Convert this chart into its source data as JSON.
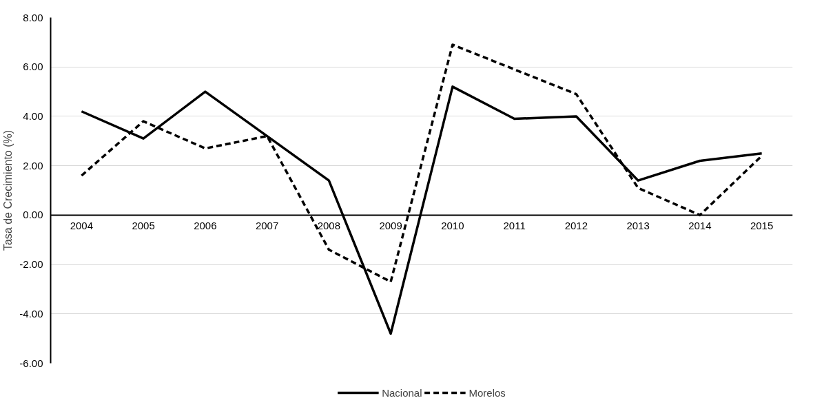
{
  "chart_data": {
    "type": "line",
    "ylabel": "Tasa de Crecimiento (%)",
    "categories": [
      "2004",
      "2005",
      "2006",
      "2007",
      "2008",
      "2009",
      "2010",
      "2011",
      "2012",
      "2013",
      "2014",
      "2015"
    ],
    "series": [
      {
        "name": "Nacional",
        "color": "#000000",
        "line_style": "solid",
        "values": [
          4.2,
          3.1,
          5.0,
          3.2,
          1.4,
          -4.8,
          5.2,
          3.9,
          4.0,
          1.4,
          2.2,
          2.5
        ]
      },
      {
        "name": "Morelos",
        "color": "#000000",
        "line_style": "dashed",
        "values": [
          1.6,
          3.8,
          2.7,
          3.2,
          -1.4,
          -2.7,
          6.9,
          5.9,
          4.9,
          1.1,
          0.0,
          2.4
        ]
      }
    ],
    "ylim": [
      -6,
      8
    ],
    "yticks": [
      {
        "value": -6,
        "label": "-6.00"
      },
      {
        "value": -4,
        "label": "-4.00"
      },
      {
        "value": -2,
        "label": "-2.00"
      },
      {
        "value": 0,
        "label": "0.00"
      },
      {
        "value": 2,
        "label": "2.00"
      },
      {
        "value": 4,
        "label": "4.00"
      },
      {
        "value": 6,
        "label": "6.00"
      },
      {
        "value": 8,
        "label": "8.00"
      }
    ],
    "grid": "y",
    "legend": "bottom",
    "marker": "none"
  }
}
